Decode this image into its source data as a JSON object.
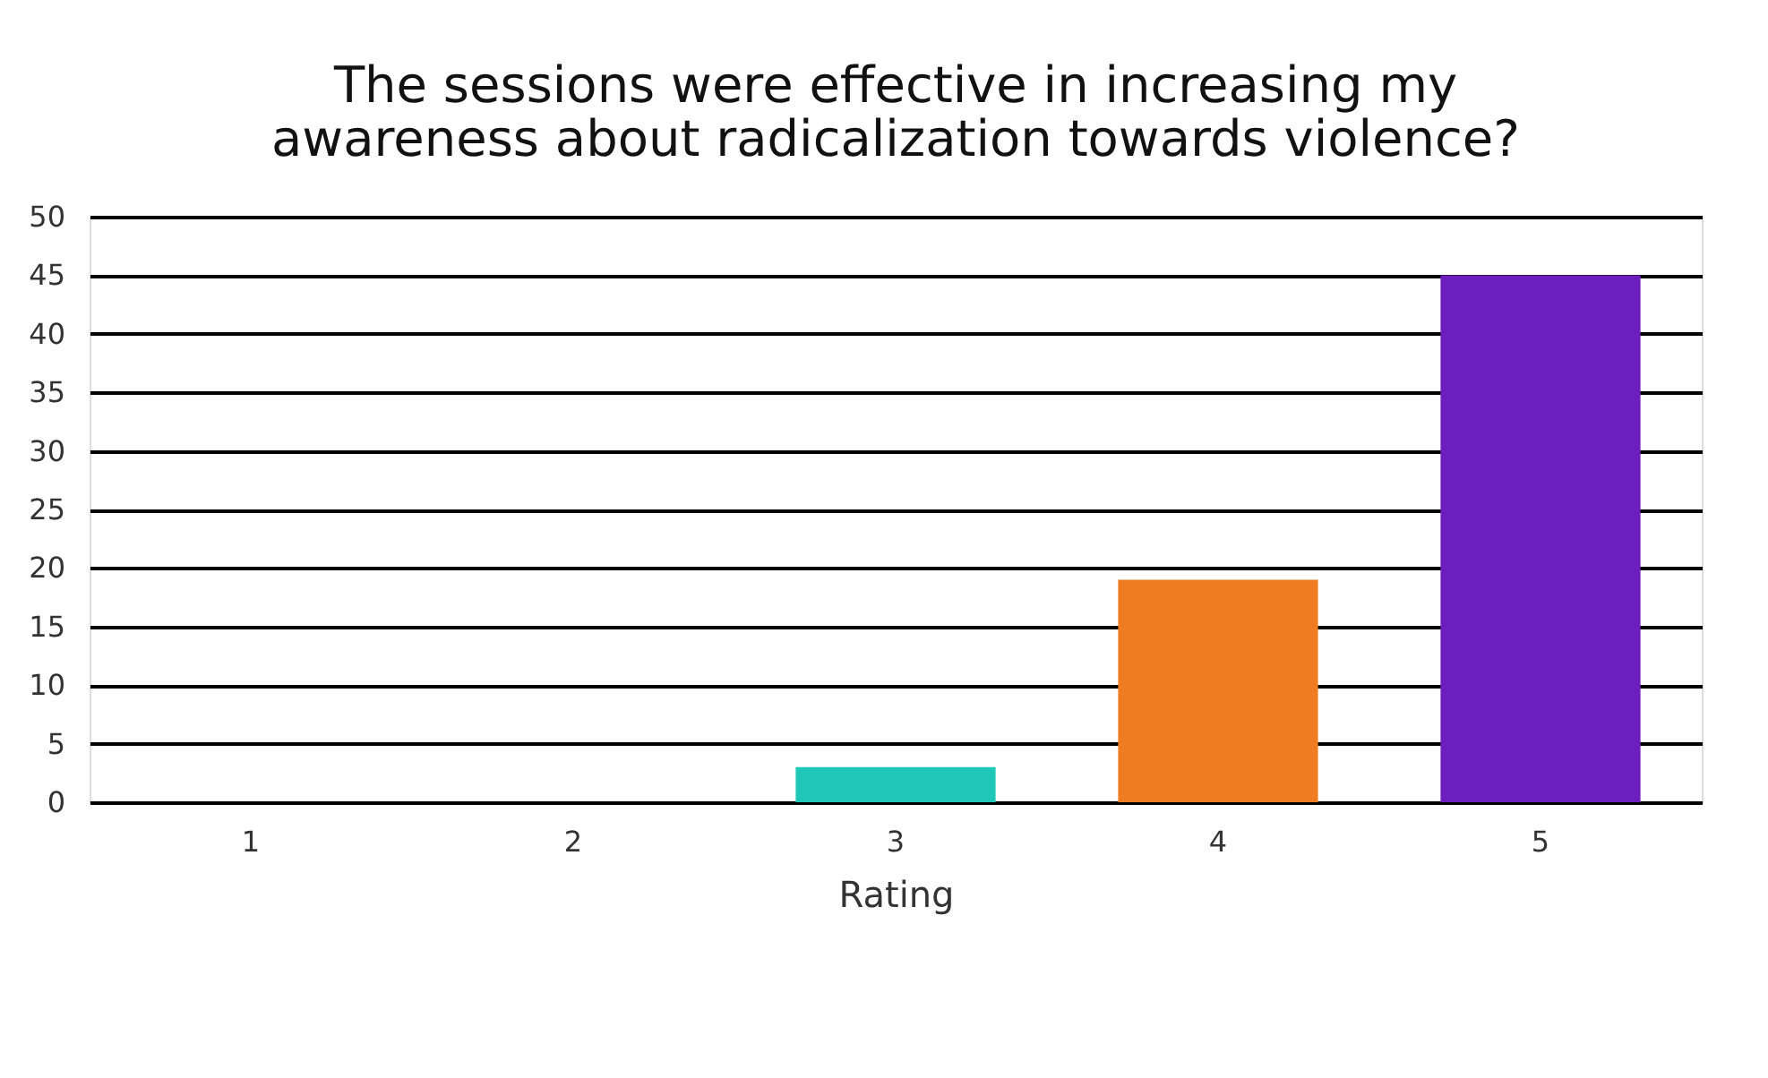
{
  "chart_data": {
    "type": "bar",
    "title": "The sessions were effective in increasing my awareness about radicalization towards violence?",
    "xlabel": "Rating",
    "categories": [
      "1",
      "2",
      "3",
      "4",
      "5"
    ],
    "values": [
      0,
      0,
      3,
      19,
      45
    ],
    "colors": [
      "#4472c4",
      "#a5a5a5",
      "#1fc7b9",
      "#ef7c21",
      "#6b1fbf"
    ],
    "ylim": [
      0,
      50
    ],
    "yticks": [
      0,
      5,
      10,
      15,
      20,
      25,
      30,
      35,
      40,
      45,
      50
    ],
    "grid": "y"
  }
}
